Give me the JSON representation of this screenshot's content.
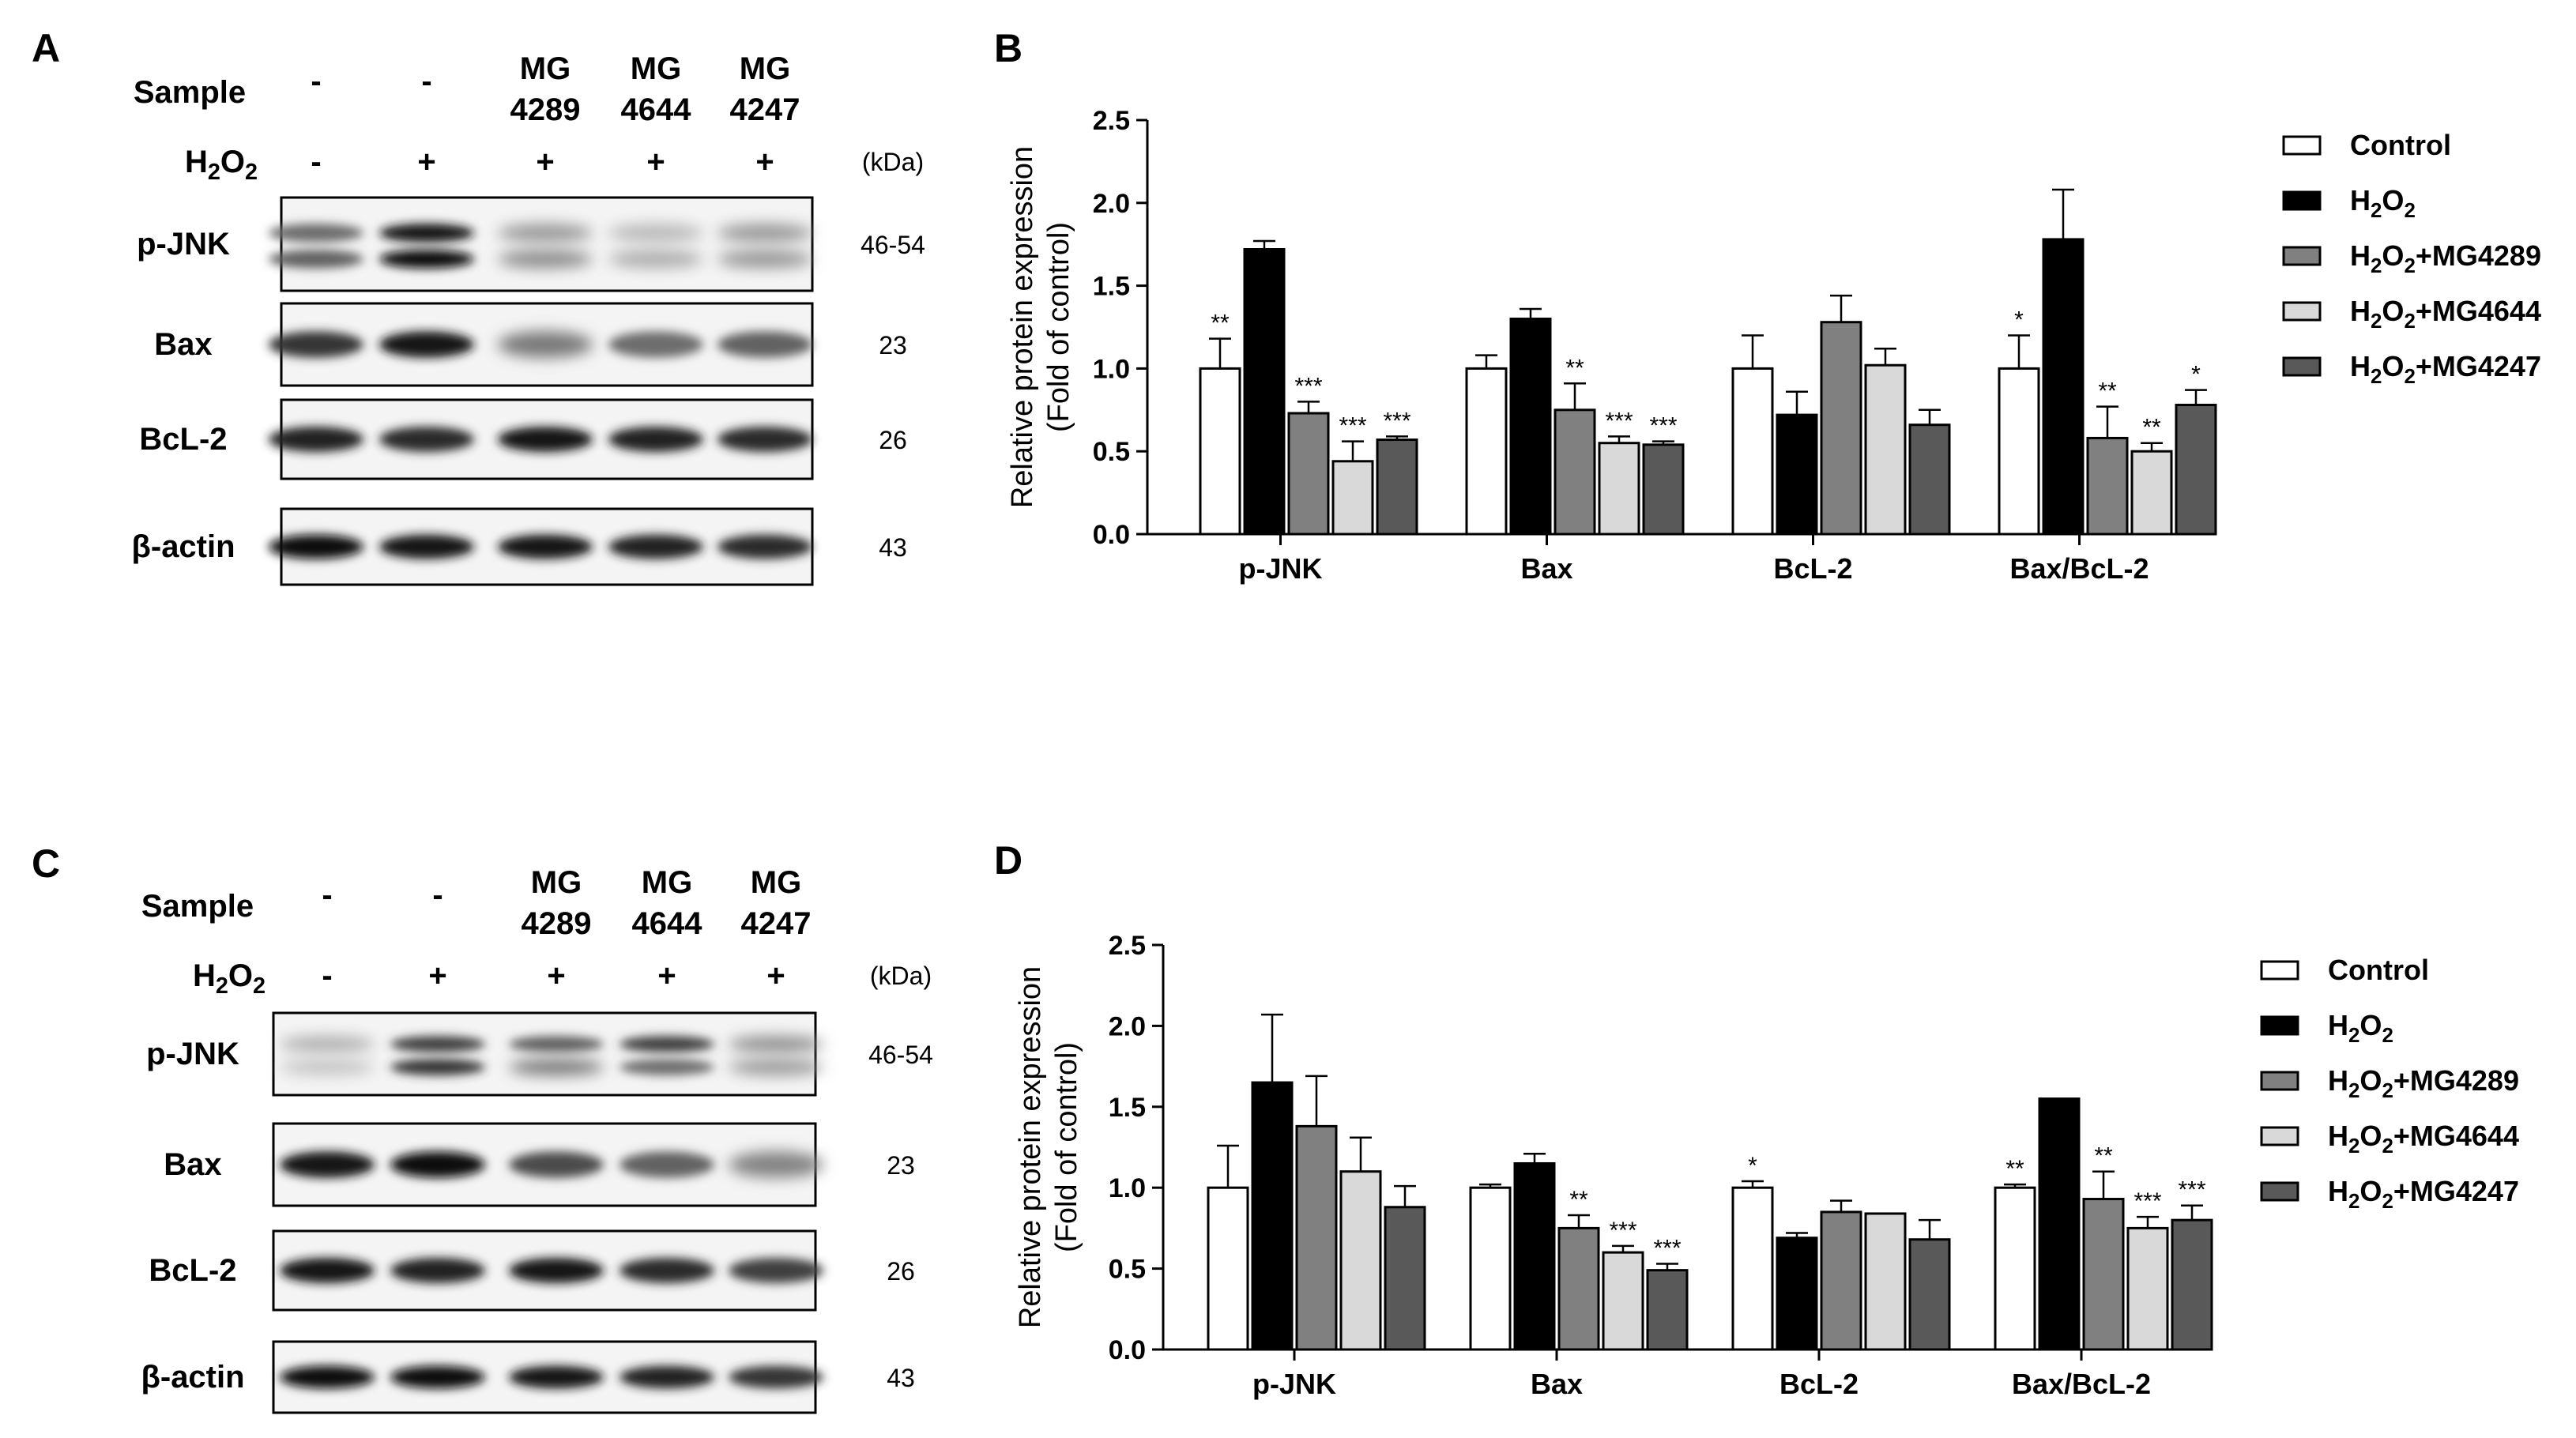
{
  "figure": {
    "blot_panels": [
      {
        "letter": "A",
        "header": {
          "sample_label": "Sample",
          "h2o2_label": "H2O2",
          "lanes": [
            {
              "sample_top": "-",
              "sample_bottom": "",
              "h2o2": "-"
            },
            {
              "sample_top": "-",
              "sample_bottom": "",
              "h2o2": "+"
            },
            {
              "sample_top": "MG",
              "sample_bottom": "4289",
              "h2o2": "+"
            },
            {
              "sample_top": "MG",
              "sample_bottom": "4644",
              "h2o2": "+"
            },
            {
              "sample_top": "MG",
              "sample_bottom": "4247",
              "h2o2": "+"
            }
          ],
          "kda_label": "(kDa)"
        },
        "rows": [
          {
            "protein": "p-JNK",
            "kda": "46-54"
          },
          {
            "protein": "Bax",
            "kda": "23"
          },
          {
            "protein": "BcL-2",
            "kda": "26"
          },
          {
            "protein": "β-actin",
            "kda": "43"
          }
        ]
      },
      {
        "letter": "C",
        "header": {
          "sample_label": "Sample",
          "h2o2_label": "H2O2",
          "lanes": [
            {
              "sample_top": "-",
              "sample_bottom": "",
              "h2o2": "-"
            },
            {
              "sample_top": "-",
              "sample_bottom": "",
              "h2o2": "+"
            },
            {
              "sample_top": "MG",
              "sample_bottom": "4289",
              "h2o2": "+"
            },
            {
              "sample_top": "MG",
              "sample_bottom": "4644",
              "h2o2": "+"
            },
            {
              "sample_top": "MG",
              "sample_bottom": "4247",
              "h2o2": "+"
            }
          ],
          "kda_label": "(kDa)"
        },
        "rows": [
          {
            "protein": "p-JNK",
            "kda": "46-54"
          },
          {
            "protein": "Bax",
            "kda": "23"
          },
          {
            "protein": "BcL-2",
            "kda": "26"
          },
          {
            "protein": "β-actin",
            "kda": "43"
          }
        ]
      }
    ]
  },
  "chart_data": [
    {
      "panel": "B",
      "type": "bar",
      "ylabel_line1": "Relative protein expression",
      "ylabel_line2": "(Fold of control)",
      "ylim": [
        0,
        2.5
      ],
      "yticks": [
        "0.0",
        "0.5",
        "1.0",
        "1.5",
        "2.0",
        "2.5"
      ],
      "categories": [
        "p-JNK",
        "Bax",
        "BcL-2",
        "Bax/BcL-2"
      ],
      "series": [
        {
          "name": "Control",
          "color": "#ffffff",
          "values": [
            1.0,
            1.0,
            1.0,
            1.0
          ],
          "errors": [
            0.18,
            0.08,
            0.2,
            0.2
          ],
          "sig": [
            "**",
            "",
            "",
            "*"
          ]
        },
        {
          "name": "H2O2",
          "color": "#000000",
          "values": [
            1.72,
            1.3,
            0.72,
            1.78
          ],
          "errors": [
            0.05,
            0.06,
            0.14,
            0.3
          ],
          "sig": [
            "",
            "",
            "",
            ""
          ]
        },
        {
          "name": "H2O2+MG4289",
          "color": "#808080",
          "values": [
            0.73,
            0.75,
            1.28,
            0.58
          ],
          "errors": [
            0.07,
            0.16,
            0.16,
            0.19
          ],
          "sig": [
            "***",
            "**",
            "",
            "**"
          ]
        },
        {
          "name": "H2O2+MG4644",
          "color": "#d9d9d9",
          "values": [
            0.44,
            0.55,
            1.02,
            0.5
          ],
          "errors": [
            0.12,
            0.04,
            0.1,
            0.05
          ],
          "sig": [
            "***",
            "***",
            "",
            "**"
          ]
        },
        {
          "name": "H2O2+MG4247",
          "color": "#595959",
          "values": [
            0.57,
            0.54,
            0.66,
            0.78
          ],
          "errors": [
            0.02,
            0.02,
            0.09,
            0.09
          ],
          "sig": [
            "***",
            "***",
            "",
            "*"
          ]
        }
      ]
    },
    {
      "panel": "D",
      "type": "bar",
      "ylabel_line1": "Relative protein expression",
      "ylabel_line2": "(Fold of control)",
      "ylim": [
        0,
        2.5
      ],
      "yticks": [
        "0.0",
        "0.5",
        "1.0",
        "1.5",
        "2.0",
        "2.5"
      ],
      "categories": [
        "p-JNK",
        "Bax",
        "BcL-2",
        "Bax/BcL-2"
      ],
      "series": [
        {
          "name": "Control",
          "color": "#ffffff",
          "values": [
            1.0,
            1.0,
            1.0,
            1.0
          ],
          "errors": [
            0.26,
            0.02,
            0.04,
            0.02
          ],
          "sig": [
            "",
            "",
            "*",
            "**"
          ]
        },
        {
          "name": "H2O2",
          "color": "#000000",
          "values": [
            1.65,
            1.15,
            0.69,
            1.55
          ],
          "errors": [
            0.42,
            0.06,
            0.03,
            0.0
          ],
          "sig": [
            "",
            "",
            "",
            ""
          ]
        },
        {
          "name": "H2O2+MG4289",
          "color": "#808080",
          "values": [
            1.38,
            0.75,
            0.85,
            0.93
          ],
          "errors": [
            0.31,
            0.08,
            0.07,
            0.17
          ],
          "sig": [
            "",
            "**",
            "",
            "**"
          ]
        },
        {
          "name": "H2O2+MG4644",
          "color": "#d9d9d9",
          "values": [
            1.1,
            0.6,
            0.84,
            0.75
          ],
          "errors": [
            0.21,
            0.04,
            0.0,
            0.07
          ],
          "sig": [
            "",
            "***",
            "",
            "***"
          ]
        },
        {
          "name": "H2O2+MG4247",
          "color": "#595959",
          "values": [
            0.88,
            0.49,
            0.68,
            0.8
          ],
          "errors": [
            0.13,
            0.04,
            0.12,
            0.09
          ],
          "sig": [
            "",
            "***",
            "",
            "***"
          ]
        }
      ]
    }
  ]
}
